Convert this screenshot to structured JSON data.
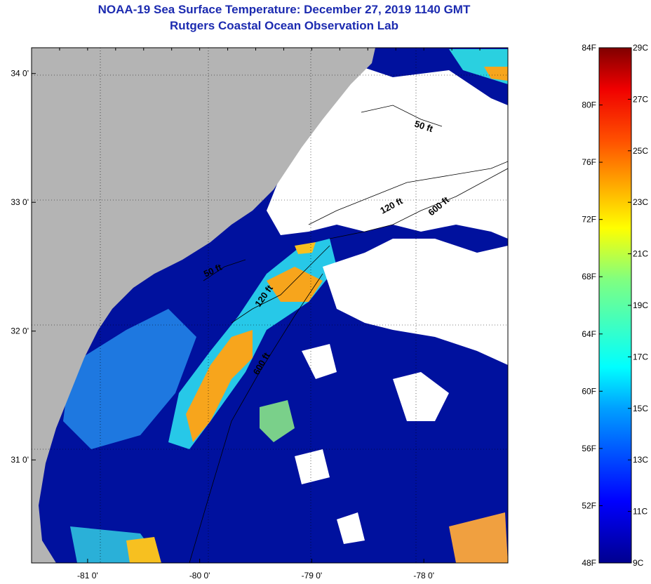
{
  "title": {
    "line1": "NOAA-19 Sea Surface Temperature:  December 27, 2019 1140 GMT",
    "line2": "Rutgers Coastal Ocean Observation Lab"
  },
  "map": {
    "lon_range": [
      -81.5,
      -77.25
    ],
    "lat_range": [
      30.2,
      34.2
    ],
    "lon_ticks": [
      {
        "value": -81,
        "label": "-81 0'"
      },
      {
        "value": -80,
        "label": "-80 0'"
      },
      {
        "value": -79,
        "label": "-79 0'"
      },
      {
        "value": -78,
        "label": "-78 0'"
      }
    ],
    "lat_ticks": [
      {
        "value": 34,
        "label": "34 0'"
      },
      {
        "value": 33,
        "label": "33 0'"
      },
      {
        "value": 32,
        "label": "32 0'"
      },
      {
        "value": 31,
        "label": "31 0'"
      }
    ],
    "contour_labels": [
      "50 ft",
      "120 ft",
      "600 ft",
      "50 ft",
      "120 ft",
      "600 ft"
    ],
    "colors": {
      "land": "#b4b4b4",
      "cloud": "#ffffff",
      "cold_water": "#00119e",
      "warm_water": "#f7a51c"
    }
  },
  "colorbar": {
    "fahrenheit": [
      "84F",
      "80F",
      "76F",
      "72F",
      "68F",
      "64F",
      "60F",
      "56F",
      "52F",
      "48F"
    ],
    "celsius": [
      "29C",
      "27C",
      "25C",
      "23C",
      "21C",
      "19C",
      "17C",
      "15C",
      "13C",
      "11C",
      "9C"
    ]
  }
}
